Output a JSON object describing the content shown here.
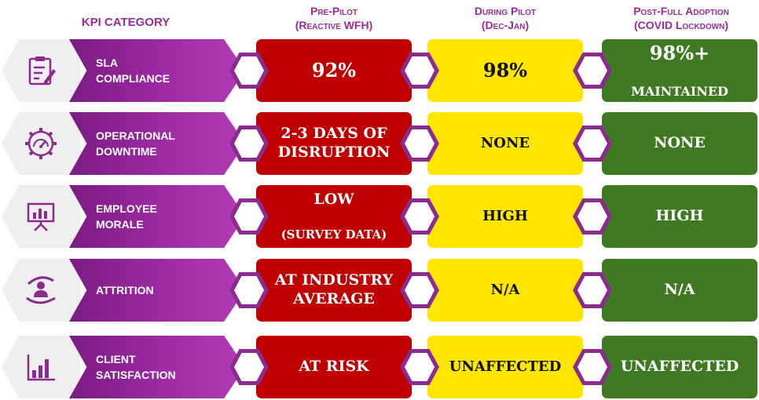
{
  "headers": {
    "kpi_category": "KPI CATEGORY",
    "pre_pilot": [
      "Pre-Pilot",
      "(Reactive WFH)"
    ],
    "during_pilot": [
      "During Pilot",
      "(Dec-Jan)"
    ],
    "post_adoption": [
      "Post-Full Adoption",
      "(COVID Lockdown)"
    ]
  },
  "rows": [
    {
      "icon": "clipboard-icon",
      "label": "SLA\nCOMPLIANCE",
      "pre_pilot": "92%",
      "during_pilot": "98%",
      "post_adoption_main": "98%+",
      "post_adoption_sub": "MAINTAINED"
    },
    {
      "icon": "gear-gauge-icon",
      "label": "OPERATIONAL\nDOWNTIME",
      "pre_pilot": "2-3 DAYS OF\nDISRUPTION",
      "during_pilot": "NONE",
      "post_adoption": "NONE"
    },
    {
      "icon": "presentation-board-icon",
      "label": "EMPLOYEE\nMORALE",
      "pre_pilot_main": "LOW",
      "pre_pilot_sub": "(SURVEY DATA)",
      "during_pilot": "HIGH",
      "post_adoption": "HIGH"
    },
    {
      "icon": "person-in-hands-icon",
      "label": "ATTRITION",
      "pre_pilot": "AT INDUSTRY\nAVERAGE",
      "during_pilot": "N/A",
      "post_adoption": "N/A"
    },
    {
      "icon": "bar-chart-icon",
      "label": "CLIENT\nSATISFACTION",
      "pre_pilot": "AT RISK",
      "during_pilot": "UNAFFECTED",
      "post_adoption": "UNAFFECTED"
    }
  ],
  "colors": {
    "accent_purple": "#9b2a9e",
    "pre_pilot_red": "#c00000",
    "during_pilot_yellow": "#ffe600",
    "post_adoption_green": "#3f7a22"
  }
}
